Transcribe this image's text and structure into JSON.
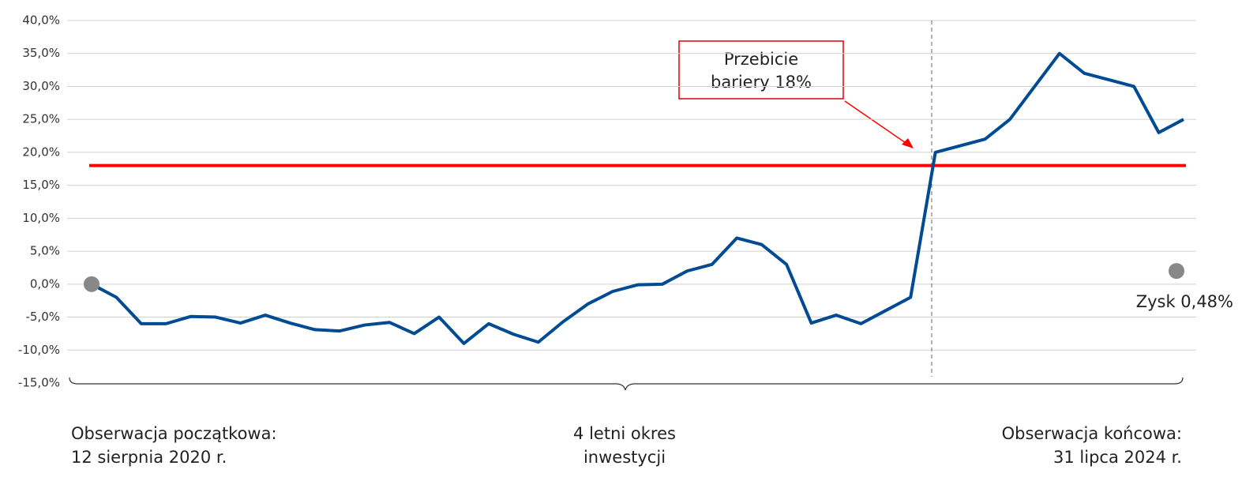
{
  "chart_data": {
    "type": "line",
    "categories": [
      null,
      null,
      null,
      null,
      null,
      null,
      null,
      null,
      null,
      null,
      null,
      null,
      null,
      null,
      null,
      null,
      null,
      null,
      null,
      null,
      null,
      null,
      null,
      null,
      null,
      null,
      null,
      null,
      null,
      null,
      null,
      null,
      null,
      null,
      null,
      null,
      null,
      null,
      null,
      null,
      null,
      null,
      null,
      null,
      null
    ],
    "series": [
      {
        "name": null,
        "color": "#004b93",
        "values": [
          0,
          -2,
          -6,
          -6,
          -4.9,
          -5,
          -5.9,
          -4.7,
          -5.9,
          -6.9,
          -7.1,
          -6.2,
          -5.8,
          -7.5,
          -5,
          -9,
          -6,
          -7.6,
          -8.8,
          -5.7,
          -3,
          -1.1,
          -0.1,
          0,
          2,
          3,
          7,
          6,
          3,
          -5.9,
          -4.7,
          -6,
          -4,
          -2,
          20,
          21,
          22,
          25,
          30,
          35,
          32,
          31,
          30,
          23,
          25
        ]
      }
    ],
    "ylim": [
      -15,
      40
    ],
    "yticks": [
      {
        "value": -15,
        "label": "-15,0%"
      },
      {
        "value": -10,
        "label": "-10,0%"
      },
      {
        "value": -5,
        "label": "-5,0%"
      },
      {
        "value": 0,
        "label": "0,0%"
      },
      {
        "value": 5,
        "label": "5,0%"
      },
      {
        "value": 10,
        "label": "10,0%"
      },
      {
        "value": 15,
        "label": "15,0%"
      },
      {
        "value": 20,
        "label": "20,0%"
      },
      {
        "value": 25,
        "label": "25,0%"
      },
      {
        "value": 30,
        "label": "30,0%"
      },
      {
        "value": 35,
        "label": "35,0%"
      },
      {
        "value": 40,
        "label": "40,0%"
      }
    ],
    "grid": true,
    "barrier": {
      "value": 18,
      "color": "#ff0000"
    },
    "annotation": [
      "Przebicie",
      "bariery 18%"
    ],
    "start_point": 0,
    "end_point": 2,
    "end_label": "Zysk 0,48%",
    "footer": {
      "left": [
        "Obserwacja początkowa:",
        "12 sierpnia 2020 r."
      ],
      "center": [
        "4 letni okres",
        "inwestycji"
      ],
      "right": [
        "Obserwacja końcowa:",
        "31 lipca 2024 r."
      ]
    }
  }
}
